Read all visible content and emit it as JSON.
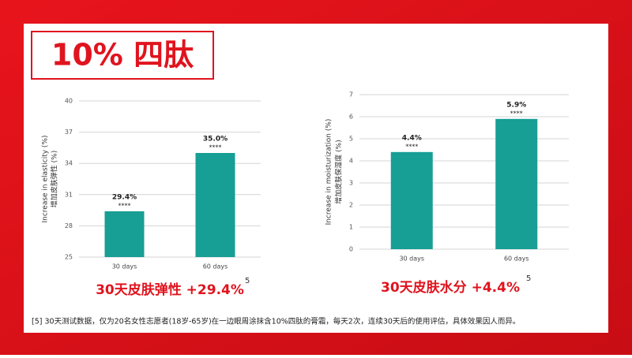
{
  "title": "10% 四肽",
  "footnote": "[5] 30天测试数据，仅为20名女性志愿者(18岁-65岁)在一边眼周涂抹含10%四肽的膏霜，每天2次，连续30天后的使用评估，具体效果因人而异。",
  "chart_data": [
    {
      "type": "bar",
      "y_label": "Increase in elasticity (%)",
      "y_label_cn": "增加皮肤弹性 (%)",
      "categories": [
        "30 days",
        "60 days"
      ],
      "values": [
        29.4,
        35.0
      ],
      "value_labels": [
        "29.4%",
        "35.0%"
      ],
      "significance": [
        "****",
        "****"
      ],
      "color": "#179e95",
      "ylim": [
        25,
        40
      ],
      "yticks": [
        25,
        28,
        31,
        34,
        37,
        40
      ],
      "grid": true,
      "caption": "30天皮肤弹性 +29.4%",
      "caption_ref": "5"
    },
    {
      "type": "bar",
      "y_label": "Increase in moisturization (%)",
      "y_label_cn": "增加皮肤保湿度 (%)",
      "categories": [
        "30 days",
        "60 days"
      ],
      "values": [
        4.4,
        5.9
      ],
      "value_labels": [
        "4.4%",
        "5.9%"
      ],
      "significance": [
        "****",
        "****"
      ],
      "color": "#179e95",
      "ylim": [
        0,
        7
      ],
      "yticks": [
        0,
        1,
        2,
        3,
        4,
        5,
        6,
        7
      ],
      "grid": true,
      "caption": "30天皮肤水分 +4.4%",
      "caption_ref": "5"
    }
  ]
}
